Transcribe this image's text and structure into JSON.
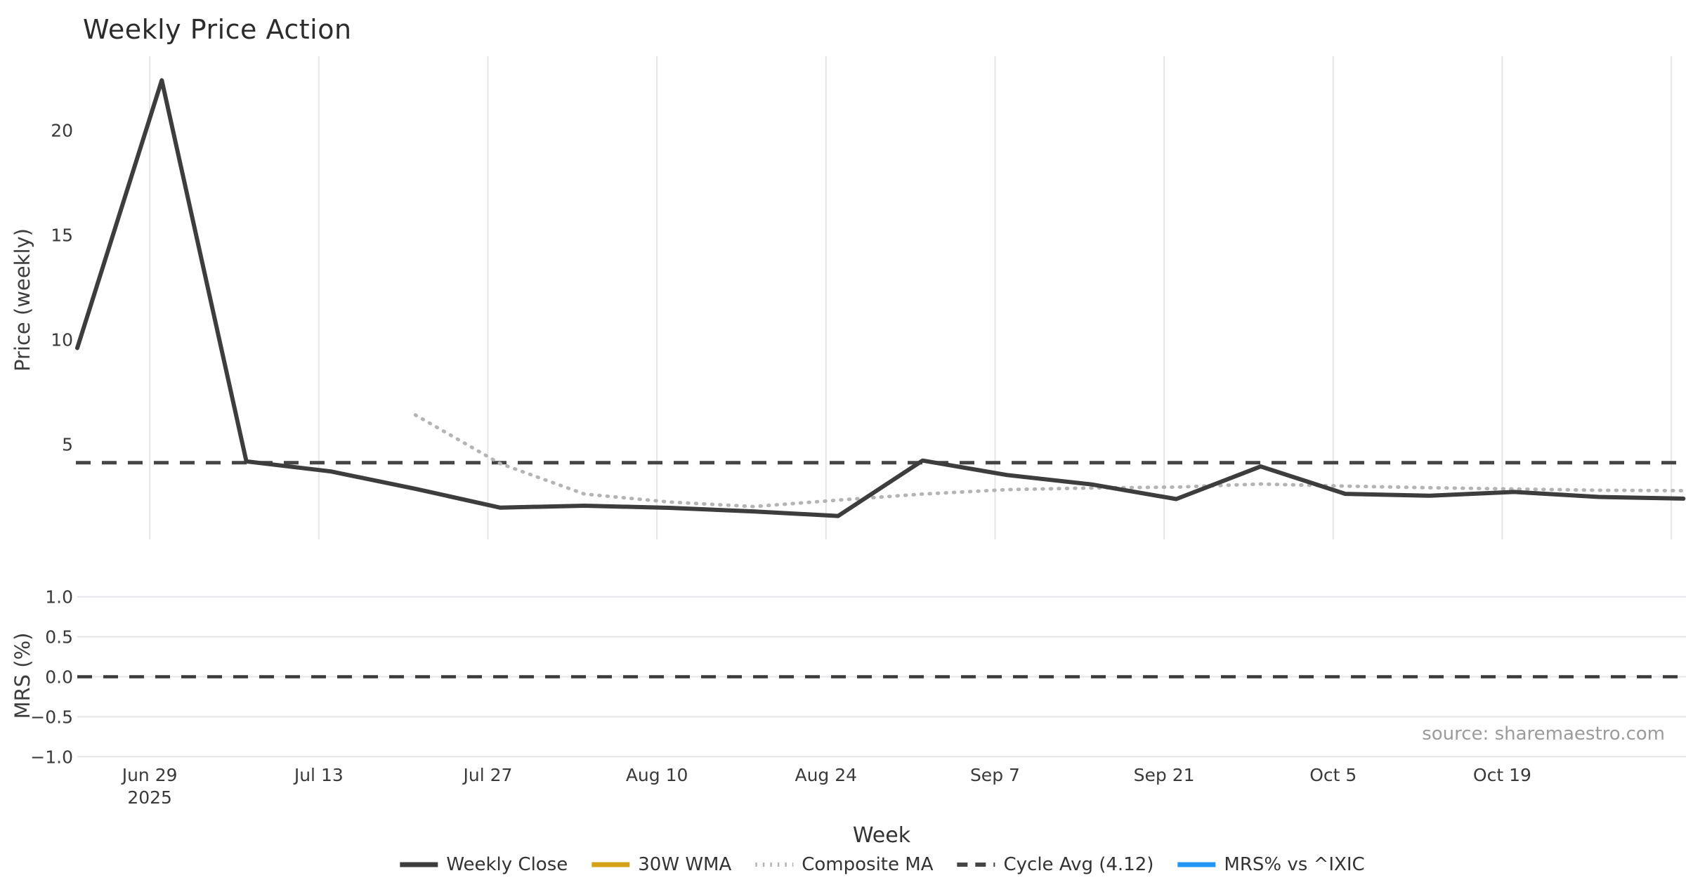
{
  "title": "Weekly Price Action",
  "xlabel": "Week",
  "source": "source: sharemaestro.com",
  "colors": {
    "close": "#3d3d3d",
    "wma": "#d4a117",
    "composite": "#b4b4b4",
    "cycle": "#454545",
    "mrs": "#2196f3",
    "grid": "#e6e6ea",
    "tick_text": "#3a3a3a"
  },
  "legend": [
    {
      "label": "Weekly Close",
      "style": "solid",
      "color": "#3d3d3d"
    },
    {
      "label": "30W WMA",
      "style": "solid",
      "color": "#d4a117"
    },
    {
      "label": "Composite MA",
      "style": "dotted",
      "color": "#b4b4b4"
    },
    {
      "label": "Cycle Avg (4.12)",
      "style": "dashed",
      "color": "#454545"
    },
    {
      "label": "MRS% vs ^IXIC",
      "style": "solid",
      "color": "#2196f3"
    }
  ],
  "chart_data": [
    {
      "type": "line",
      "panel": "price",
      "title": "Weekly Price Action",
      "ylabel": "Price (weekly)",
      "xlabel": "Week",
      "grid": "vertical-only",
      "ylim": [
        0.45,
        23.55
      ],
      "yticks": [
        {
          "label": "5",
          "value": 5
        },
        {
          "label": "10",
          "value": 10
        },
        {
          "label": "15",
          "value": 15
        },
        {
          "label": "20",
          "value": 20
        }
      ],
      "x_ticks": [
        {
          "label": "Jun 29",
          "sublabel": "2025",
          "day": 6
        },
        {
          "label": "Jul 13",
          "day": 20
        },
        {
          "label": "Jul 27",
          "day": 34
        },
        {
          "label": "Aug 10",
          "day": 48
        },
        {
          "label": "Aug 24",
          "day": 62
        },
        {
          "label": "Sep 7",
          "day": 76
        },
        {
          "label": "Sep 21",
          "day": 90
        },
        {
          "label": "Oct 5",
          "day": 104
        },
        {
          "label": "Oct 19",
          "day": 118
        },
        {
          "label": "",
          "day": 132
        }
      ],
      "weeks": [
        "Jun 23",
        "Jun 30",
        "Jul 7",
        "Jul 14",
        "Jul 21",
        "Jul 28",
        "Aug 4",
        "Aug 11",
        "Aug 18",
        "Aug 25",
        "Sep 1",
        "Sep 8",
        "Sep 15",
        "Sep 22",
        "Sep 29",
        "Oct 6",
        "Oct 13",
        "Oct 20",
        "Oct 27",
        "Nov 3"
      ],
      "series": [
        {
          "name": "Weekly Close",
          "style": "solid",
          "start_index": 0,
          "values": [
            9.6,
            22.4,
            4.18,
            3.7,
            2.87,
            1.97,
            2.06,
            1.96,
            1.79,
            1.57,
            4.22,
            3.53,
            3.08,
            2.38,
            3.94,
            2.63,
            2.54,
            2.72,
            2.48,
            2.4
          ]
        },
        {
          "name": "30W WMA",
          "style": "solid",
          "start_index": 0,
          "values": []
        },
        {
          "name": "Composite MA",
          "style": "dotted",
          "start_index": 4,
          "values": [
            6.4,
            4.08,
            2.62,
            2.24,
            2.02,
            2.33,
            2.62,
            2.83,
            2.91,
            2.95,
            3.1,
            3.0,
            2.92,
            2.86,
            2.8,
            2.78
          ]
        },
        {
          "name": "Cycle Avg (4.12)",
          "style": "dashed",
          "constant": 4.12
        }
      ]
    },
    {
      "type": "line",
      "panel": "mrs",
      "ylabel": "MRS (%)",
      "grid": "horizontal-only",
      "ylim": [
        -1.05,
        1.05
      ],
      "yticks": [
        {
          "label": "1.0",
          "value": 1.0
        },
        {
          "label": "0.5",
          "value": 0.5
        },
        {
          "label": "0.0",
          "value": 0.0
        },
        {
          "label": "−0.5",
          "value": -0.5
        },
        {
          "label": "−1.0",
          "value": -1.0
        }
      ],
      "zero_line": 0.0,
      "series": [
        {
          "name": "MRS% vs ^IXIC",
          "style": "solid",
          "start_index": 0,
          "values": []
        }
      ]
    }
  ]
}
